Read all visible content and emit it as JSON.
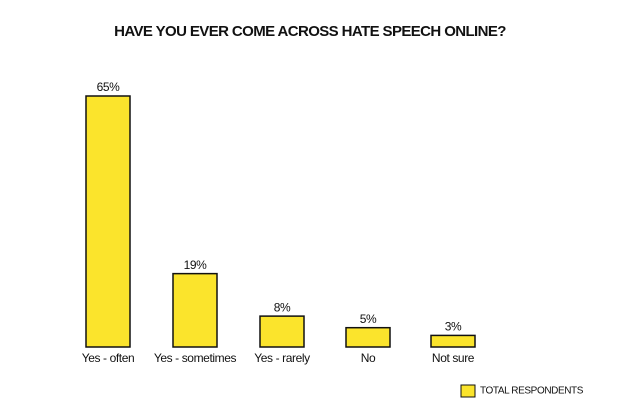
{
  "chart_data": {
    "type": "bar",
    "title": "HAVE YOU EVER COME ACROSS HATE SPEECH ONLINE?",
    "categories": [
      "Yes - often",
      "Yes - sometimes",
      "Yes - rarely",
      "No",
      "Not sure"
    ],
    "series": [
      {
        "name": "TOTAL RESPONDENTS",
        "color": "#fbe42c",
        "values": [
          65,
          19,
          8,
          5,
          3
        ],
        "value_labels": [
          "65%",
          "19%",
          "8%",
          "5%",
          "3%"
        ]
      }
    ]
  }
}
